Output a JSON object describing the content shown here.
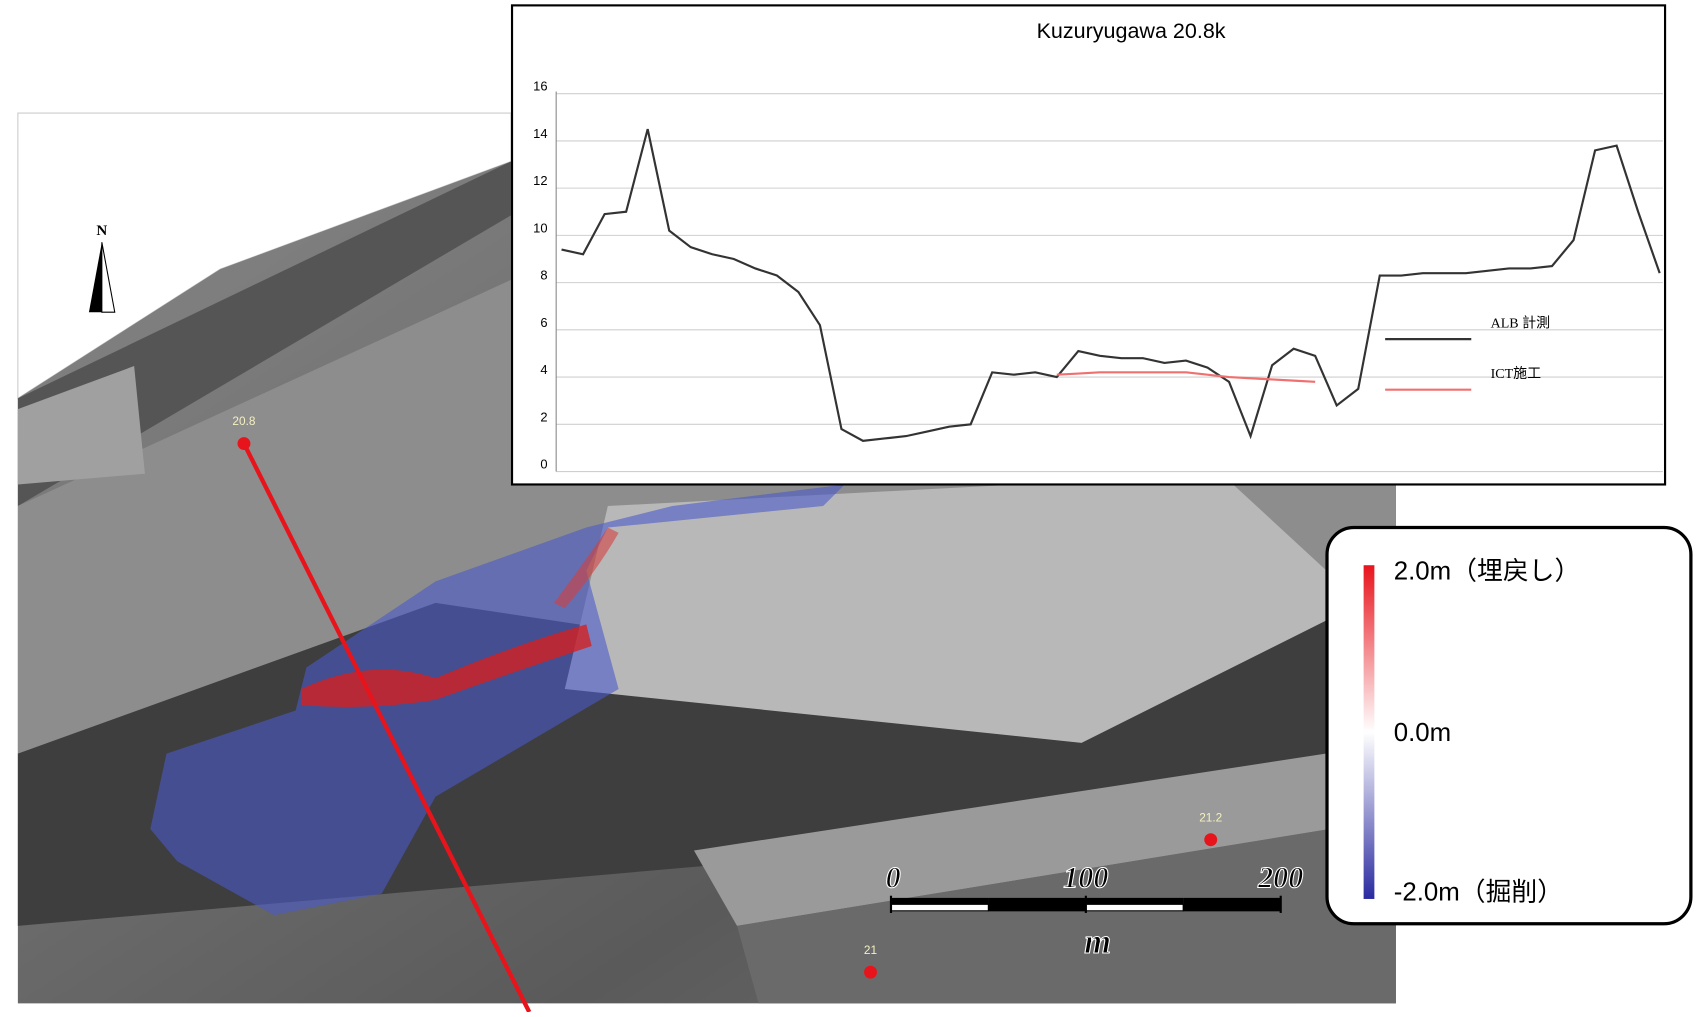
{
  "chart_data": {
    "type": "line",
    "title": "Kuzuryugawa 20.8k",
    "categories": [
      null,
      null,
      null,
      null,
      null,
      null,
      null,
      null,
      null,
      null,
      null,
      null,
      null,
      null,
      null,
      null,
      null,
      null,
      null,
      null,
      null,
      null,
      null,
      null,
      null,
      null,
      null,
      null,
      null,
      null,
      null,
      null,
      null,
      null,
      null,
      null,
      null,
      null,
      null,
      null,
      null,
      null,
      null,
      null,
      null,
      null,
      null,
      null,
      null,
      null,
      null,
      null
    ],
    "series": [
      {
        "name": "ALB 計測",
        "color": "#333333",
        "values": [
          9.4,
          9.2,
          10.9,
          11.0,
          14.5,
          10.2,
          9.5,
          9.2,
          9.0,
          8.6,
          8.3,
          7.6,
          6.2,
          1.8,
          1.3,
          1.4,
          1.5,
          1.7,
          1.9,
          2.0,
          4.2,
          4.1,
          4.2,
          4.0,
          5.1,
          4.9,
          4.8,
          4.8,
          4.6,
          4.7,
          4.4,
          3.8,
          1.5,
          4.5,
          5.2,
          4.9,
          2.8,
          3.5,
          8.3,
          8.3,
          8.4,
          8.4,
          8.4,
          8.5,
          8.6,
          8.6,
          8.7,
          9.8,
          13.6,
          13.8,
          11.0,
          8.4
        ]
      },
      {
        "name": "ICT施工",
        "color": "#f07070",
        "values": [
          null,
          null,
          null,
          null,
          null,
          null,
          null,
          null,
          null,
          null,
          null,
          null,
          null,
          null,
          null,
          null,
          null,
          null,
          null,
          null,
          null,
          null,
          null,
          4.1,
          4.15,
          4.2,
          4.2,
          4.2,
          4.2,
          4.2,
          4.1,
          4.0,
          3.95,
          3.9,
          3.85,
          3.8,
          null,
          null,
          null,
          null,
          null,
          null,
          null,
          null,
          null,
          null,
          null,
          null,
          null,
          null,
          null,
          null
        ]
      }
    ],
    "ylim": [
      0,
      16
    ],
    "yticks": [
      0,
      2,
      4,
      6,
      8,
      10,
      12,
      14,
      16
    ],
    "grid": true
  },
  "map": {
    "north": "N",
    "stations": [
      "20.8",
      "21.2",
      "21"
    ],
    "scale": {
      "ticks": [
        0,
        100,
        200
      ],
      "unit": "m"
    },
    "legend": {
      "max": "2.0m（埋戻し）",
      "mid": "0.0m",
      "min": "-2.0m（掘削）"
    }
  }
}
